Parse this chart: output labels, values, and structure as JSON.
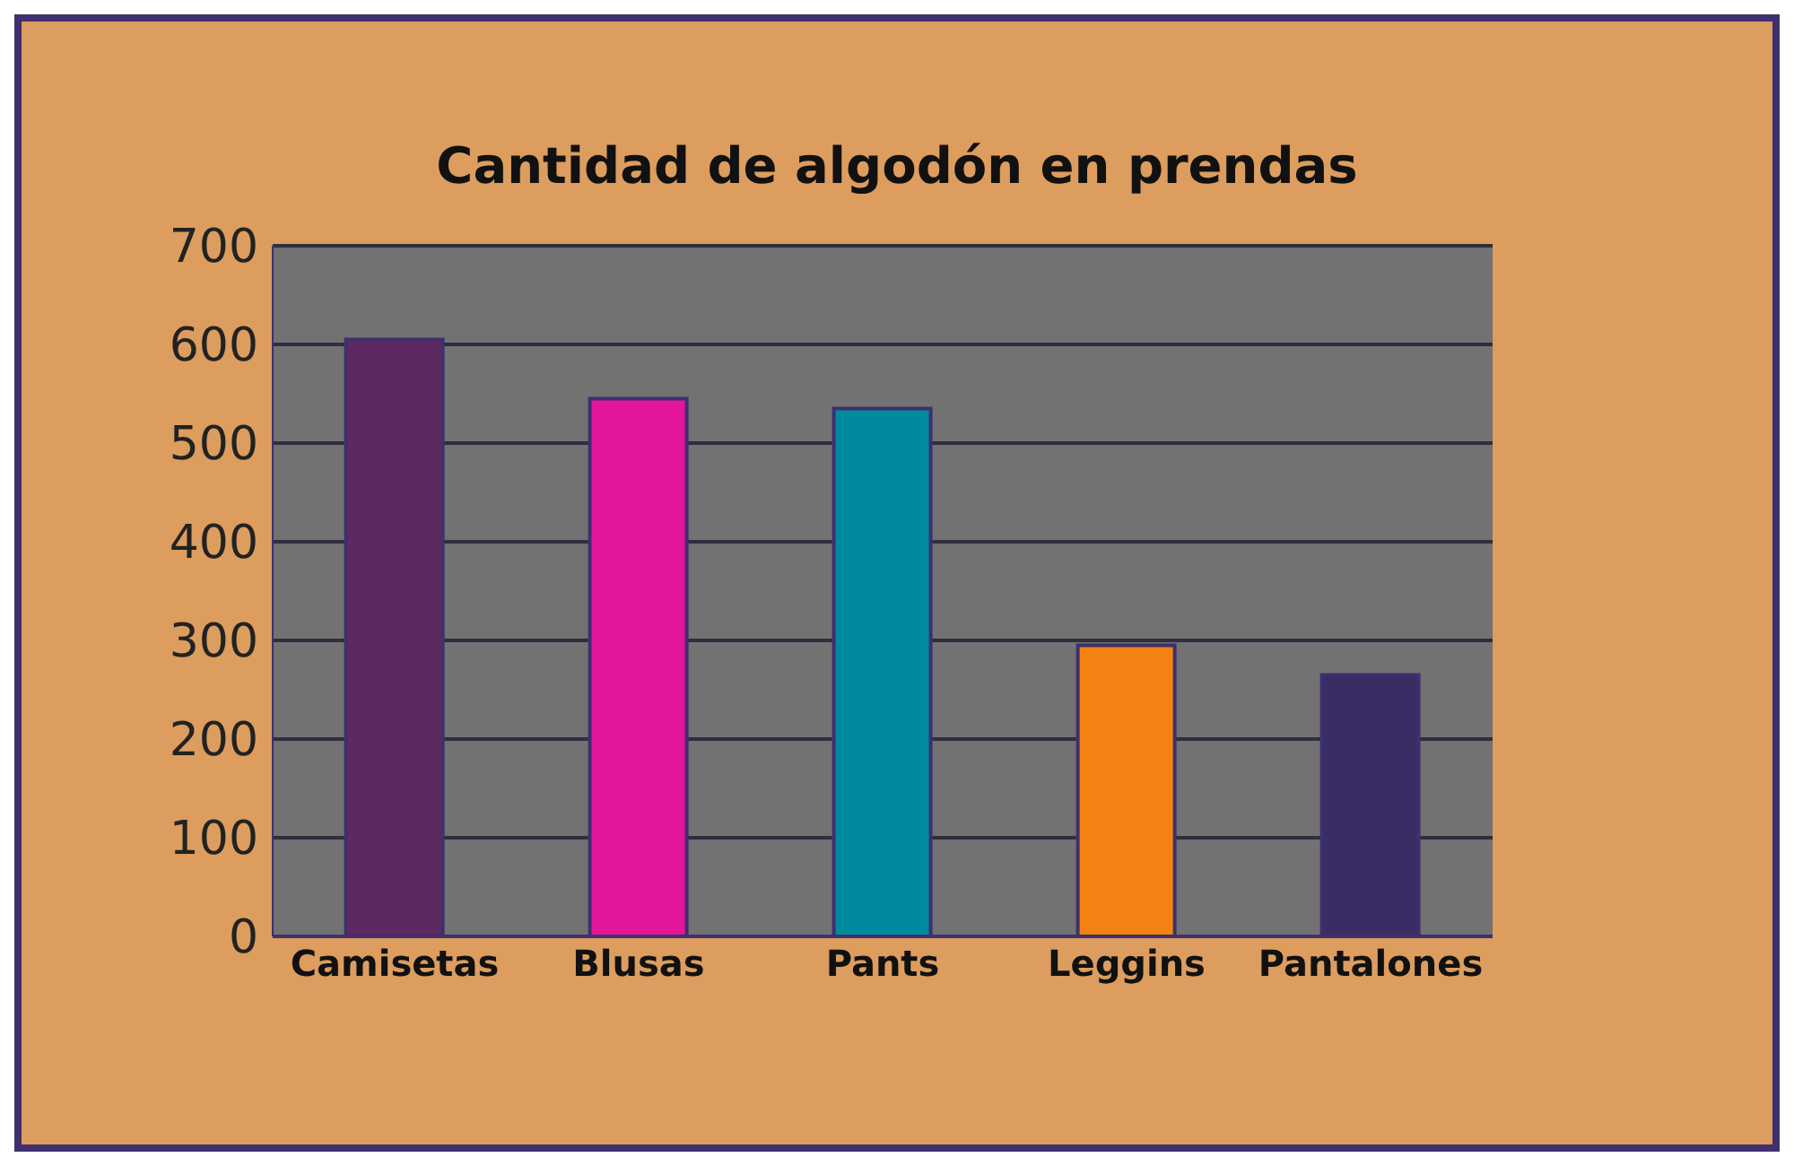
{
  "chart_data": {
    "type": "bar",
    "title": "Cantidad de algodón en prendas",
    "categories": [
      "Camisetas",
      "Blusas",
      "Pants",
      "Leggins",
      "Pantalones"
    ],
    "values": [
      605,
      545,
      535,
      295,
      265
    ],
    "colors": [
      "#5e2960",
      "#e3159a",
      "#008a9e",
      "#f28313",
      "#3a2d66"
    ],
    "ylim": [
      0,
      700
    ],
    "yticks": [
      0,
      100,
      200,
      300,
      400,
      500,
      600,
      700
    ],
    "grid": "y"
  }
}
